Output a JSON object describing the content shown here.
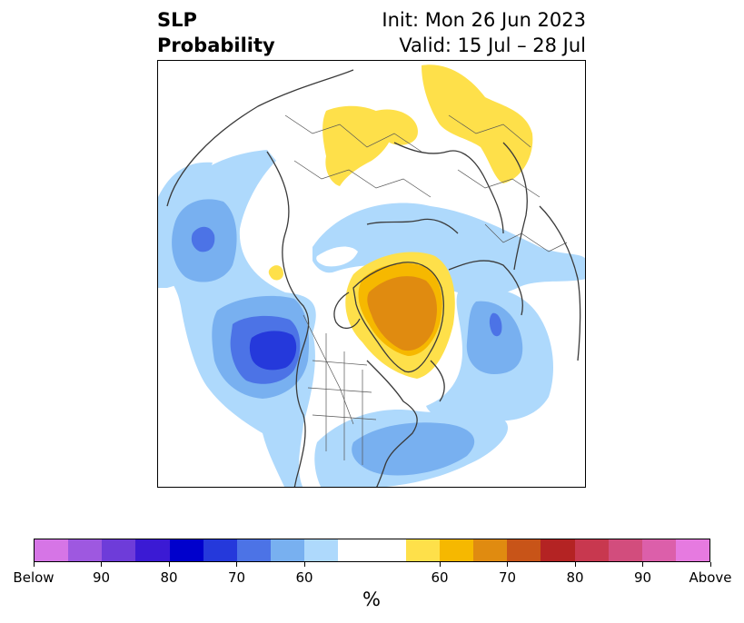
{
  "title": {
    "left_line1": "SLP",
    "left_line2": "Probability",
    "right_line1": "Init: Mon 26 Jun 2023",
    "right_line2": "Valid: 15 Jul – 28 Jul"
  },
  "map": {
    "projection": "north-polar-stereographic",
    "features": [
      "coastlines",
      "country-borders",
      "us-state-borders"
    ],
    "anomaly_regions": [
      {
        "name": "greenland-above",
        "category": "above",
        "max_level": "70"
      },
      {
        "name": "siberia-above",
        "category": "above",
        "max_level": "60"
      },
      {
        "name": "north-pacific-below",
        "category": "below",
        "max_level": "80"
      },
      {
        "name": "alaska-pacific-below",
        "category": "below",
        "max_level": "70"
      },
      {
        "name": "north-atlantic-below",
        "category": "below",
        "max_level": "70"
      },
      {
        "name": "eastern-us-below",
        "category": "below",
        "max_level": "60"
      }
    ]
  },
  "colorbar": {
    "colors": [
      "#d675e6",
      "#9e58e0",
      "#6e3cd9",
      "#3b1ad4",
      "#0000cc",
      "#2539db",
      "#4c73e6",
      "#78b0f0",
      "#aed9fc",
      "#ffffff",
      "#ffffff",
      "#fee04a",
      "#f6b800",
      "#e08b10",
      "#c85418",
      "#b42323",
      "#c8384f",
      "#d24d7d",
      "#dc5faa",
      "#e67ae0"
    ],
    "labels": [
      "Below",
      "90",
      "80",
      "70",
      "60",
      "60",
      "70",
      "80",
      "90",
      "Above"
    ],
    "units": "%"
  }
}
